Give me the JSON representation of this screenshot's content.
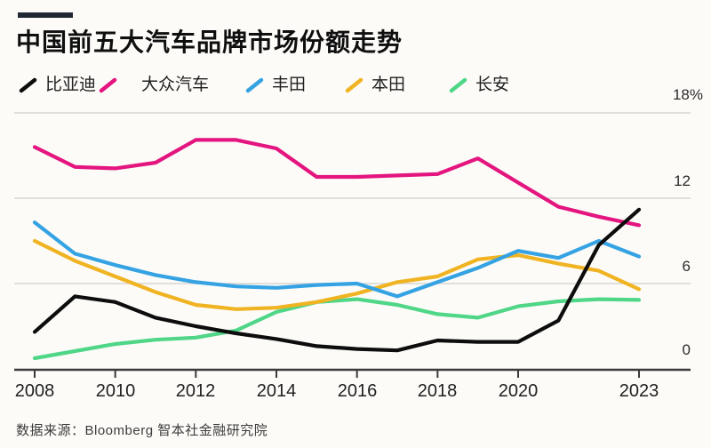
{
  "header": {
    "title": "中国前五大汽车品牌市场份额走势"
  },
  "footer": {
    "source": "数据来源：Bloomberg 智本社金融研究院"
  },
  "colors": {
    "background": "#fcfbf8",
    "accent_bar": "#1f2733",
    "grid": "#d8d6d2",
    "axis": "#3a3a3a",
    "byd": "#0d0d0d",
    "volkswagen": "#e4157f",
    "toyota": "#35a3e3",
    "honda": "#f0b321",
    "changan": "#4fd687"
  },
  "chart_data": {
    "type": "line",
    "title": "中国前五大汽车品牌市场份额走势",
    "x": [
      2008,
      2009,
      2010,
      2011,
      2012,
      2013,
      2014,
      2015,
      2016,
      2017,
      2018,
      2019,
      2020,
      2021,
      2022,
      2023
    ],
    "series": [
      {
        "name": "比亚迪",
        "color": "#0d0d0d",
        "values": [
          2.6,
          5.1,
          4.7,
          3.6,
          3.0,
          2.5,
          2.1,
          1.6,
          1.4,
          1.3,
          2.0,
          1.9,
          1.9,
          3.4,
          8.7,
          11.2
        ]
      },
      {
        "name": "大众汽车",
        "color": "#e4157f",
        "values": [
          15.6,
          14.2,
          14.1,
          14.5,
          16.1,
          16.1,
          15.5,
          13.5,
          13.5,
          13.6,
          13.7,
          14.8,
          13.1,
          11.4,
          10.7,
          10.1
        ]
      },
      {
        "name": "丰田",
        "color": "#35a3e3",
        "values": [
          10.3,
          8.1,
          7.3,
          6.6,
          6.1,
          5.8,
          5.7,
          5.9,
          6.0,
          5.1,
          6.1,
          7.1,
          8.3,
          7.8,
          9.0,
          7.9
        ]
      },
      {
        "name": "本田",
        "color": "#f0b321",
        "values": [
          9.0,
          7.6,
          6.5,
          5.4,
          4.5,
          4.2,
          4.3,
          4.7,
          5.3,
          6.1,
          6.5,
          7.7,
          8.0,
          7.4,
          6.9,
          5.6
        ]
      },
      {
        "name": "长安",
        "color": "#4fd687",
        "values": [
          0.75,
          1.25,
          1.75,
          2.05,
          2.2,
          2.7,
          4.0,
          4.7,
          4.9,
          4.5,
          3.85,
          3.6,
          4.4,
          4.75,
          4.9,
          4.85
        ]
      }
    ],
    "ylim": [
      0,
      18
    ],
    "y_unit": "%",
    "yticks": [
      {
        "label": "18%",
        "value": 18
      },
      {
        "label": "12",
        "value": 12
      },
      {
        "label": "6",
        "value": 6
      },
      {
        "label": "0",
        "value": 0
      }
    ],
    "xticks": [
      {
        "label": "2008",
        "year": 2008
      },
      {
        "label": "2010",
        "year": 2010
      },
      {
        "label": "2012",
        "year": 2012
      },
      {
        "label": "2014",
        "year": 2014
      },
      {
        "label": "2016",
        "year": 2016
      },
      {
        "label": "2018",
        "year": 2018
      },
      {
        "label": "2020",
        "year": 2020
      },
      {
        "label": "2023",
        "year": 2023
      }
    ],
    "grid": "horizontal",
    "legend_position": "top-left"
  }
}
